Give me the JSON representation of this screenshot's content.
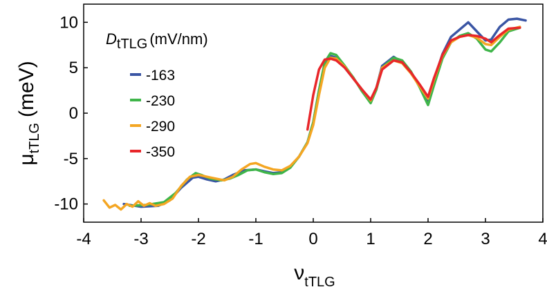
{
  "chart_data": {
    "type": "line",
    "xlabel": {
      "main": "ν",
      "sub": "tTLG"
    },
    "ylabel": {
      "main": "μ",
      "sub": "tTLG",
      "unit": "(meV)"
    },
    "xlim": [
      -4,
      4
    ],
    "ylim": [
      -12,
      12
    ],
    "xticks": [
      -4,
      -3,
      -2,
      -1,
      0,
      1,
      2,
      3,
      4
    ],
    "yticks": [
      -10,
      -5,
      0,
      5,
      10
    ],
    "xtick_labels": [
      "-4",
      "-3",
      "-2",
      "-1",
      "0",
      "1",
      "2",
      "3",
      "4"
    ],
    "ytick_labels": [
      "-10",
      "-5",
      "0",
      "5",
      "10"
    ],
    "grid": false,
    "legend": {
      "title_main": "D",
      "title_sub": "tTLG",
      "title_unit": "(mV/nm)",
      "placement": "top-left"
    },
    "series": [
      {
        "name": "-163",
        "color": "#3a55a4",
        "x": [
          -3.3,
          -3.0,
          -2.7,
          -2.5,
          -2.3,
          -2.1,
          -2.0,
          -1.85,
          -1.7,
          -1.55,
          -1.4,
          -1.2,
          -1.0,
          -0.85,
          -0.7,
          -0.55,
          -0.4,
          -0.25,
          -0.1,
          0.0,
          0.1,
          0.2,
          0.3,
          0.4,
          0.55,
          0.7,
          0.85,
          1.0,
          1.1,
          1.2,
          1.4,
          1.55,
          1.7,
          1.85,
          2.0,
          2.1,
          2.25,
          2.4,
          2.55,
          2.7,
          2.85,
          3.0,
          3.1,
          3.25,
          3.4,
          3.55,
          3.7
        ],
        "y": [
          -10.0,
          -10.3,
          -10.2,
          -9.6,
          -8.2,
          -7.1,
          -7.0,
          -7.3,
          -7.5,
          -7.3,
          -6.8,
          -6.3,
          -6.2,
          -6.4,
          -6.6,
          -6.5,
          -5.9,
          -4.8,
          -3.2,
          -1.0,
          2.5,
          5.5,
          6.3,
          6.1,
          5.0,
          3.8,
          2.6,
          1.4,
          2.8,
          5.2,
          6.2,
          5.6,
          4.5,
          3.0,
          1.4,
          3.6,
          6.5,
          8.4,
          9.2,
          10.0,
          9.0,
          8.0,
          8.1,
          9.5,
          10.3,
          10.4,
          10.2
        ]
      },
      {
        "name": "-230",
        "color": "#3fb54a",
        "x": [
          -3.2,
          -2.9,
          -2.6,
          -2.4,
          -2.2,
          -2.05,
          -1.95,
          -1.8,
          -1.6,
          -1.45,
          -1.3,
          -1.15,
          -1.0,
          -0.85,
          -0.7,
          -0.55,
          -0.4,
          -0.25,
          -0.1,
          0.0,
          0.1,
          0.2,
          0.3,
          0.4,
          0.55,
          0.7,
          0.85,
          1.0,
          1.1,
          1.2,
          1.4,
          1.55,
          1.7,
          1.85,
          2.0,
          2.1,
          2.25,
          2.4,
          2.55,
          2.7,
          2.85,
          3.0,
          3.1,
          3.25,
          3.4,
          3.6
        ],
        "y": [
          -10.2,
          -10.1,
          -9.8,
          -8.8,
          -7.3,
          -6.6,
          -6.8,
          -7.2,
          -7.4,
          -7.2,
          -6.8,
          -6.3,
          -6.2,
          -6.5,
          -6.7,
          -6.6,
          -6.0,
          -4.8,
          -3.2,
          -1.0,
          2.5,
          5.6,
          6.6,
          6.4,
          5.2,
          3.9,
          2.4,
          1.1,
          2.6,
          5.0,
          6.1,
          5.8,
          4.6,
          2.9,
          0.9,
          3.0,
          6.0,
          7.8,
          8.5,
          8.8,
          8.2,
          7.0,
          6.8,
          7.8,
          9.0,
          9.4
        ]
      },
      {
        "name": "-290",
        "color": "#f4a623",
        "x": [
          -3.65,
          -3.55,
          -3.45,
          -3.35,
          -3.25,
          -3.15,
          -3.05,
          -2.95,
          -2.85,
          -2.75,
          -2.6,
          -2.45,
          -2.3,
          -2.15,
          -2.0,
          -1.85,
          -1.7,
          -1.55,
          -1.4,
          -1.25,
          -1.1,
          -1.0,
          -0.85,
          -0.7,
          -0.55,
          -0.4,
          -0.25,
          -0.1,
          0.0,
          0.1,
          0.2,
          0.3,
          0.4,
          0.55,
          0.7,
          0.85,
          1.0,
          1.1,
          1.2,
          1.4,
          1.55,
          1.7,
          1.85,
          2.0,
          2.1,
          2.25,
          2.4,
          2.55,
          2.7,
          2.85,
          3.0,
          3.1,
          3.25,
          3.4,
          3.6
        ],
        "y": [
          -9.6,
          -10.4,
          -10.1,
          -10.6,
          -10.0,
          -10.3,
          -9.7,
          -10.2,
          -9.9,
          -10.2,
          -10.0,
          -9.4,
          -8.0,
          -7.0,
          -6.8,
          -7.0,
          -7.2,
          -7.4,
          -7.0,
          -6.2,
          -5.6,
          -5.5,
          -5.9,
          -6.2,
          -6.3,
          -5.8,
          -4.8,
          -3.3,
          -1.3,
          2.0,
          5.0,
          6.1,
          6.0,
          5.1,
          3.8,
          2.6,
          1.4,
          2.8,
          5.0,
          5.8,
          5.5,
          4.4,
          3.0,
          1.6,
          3.6,
          6.3,
          7.8,
          8.4,
          8.6,
          8.3,
          7.6,
          7.5,
          8.4,
          9.2,
          9.5
        ]
      },
      {
        "name": "-350",
        "color": "#e8262a",
        "x": [
          -0.1,
          0.0,
          0.1,
          0.2,
          0.3,
          0.4,
          0.55,
          0.7,
          0.85,
          1.0,
          1.1,
          1.2,
          1.4,
          1.55,
          1.7,
          1.85,
          2.0,
          2.1,
          2.25,
          2.4,
          2.55,
          2.7,
          2.85,
          3.0,
          3.1,
          3.25,
          3.4,
          3.6
        ],
        "y": [
          -1.8,
          2.0,
          4.8,
          5.9,
          6.0,
          5.8,
          5.0,
          3.8,
          2.6,
          1.5,
          2.8,
          4.8,
          5.8,
          5.6,
          4.5,
          3.2,
          1.8,
          3.8,
          6.4,
          8.0,
          8.4,
          8.6,
          8.5,
          8.2,
          7.8,
          8.6,
          9.3,
          9.4
        ]
      }
    ]
  }
}
